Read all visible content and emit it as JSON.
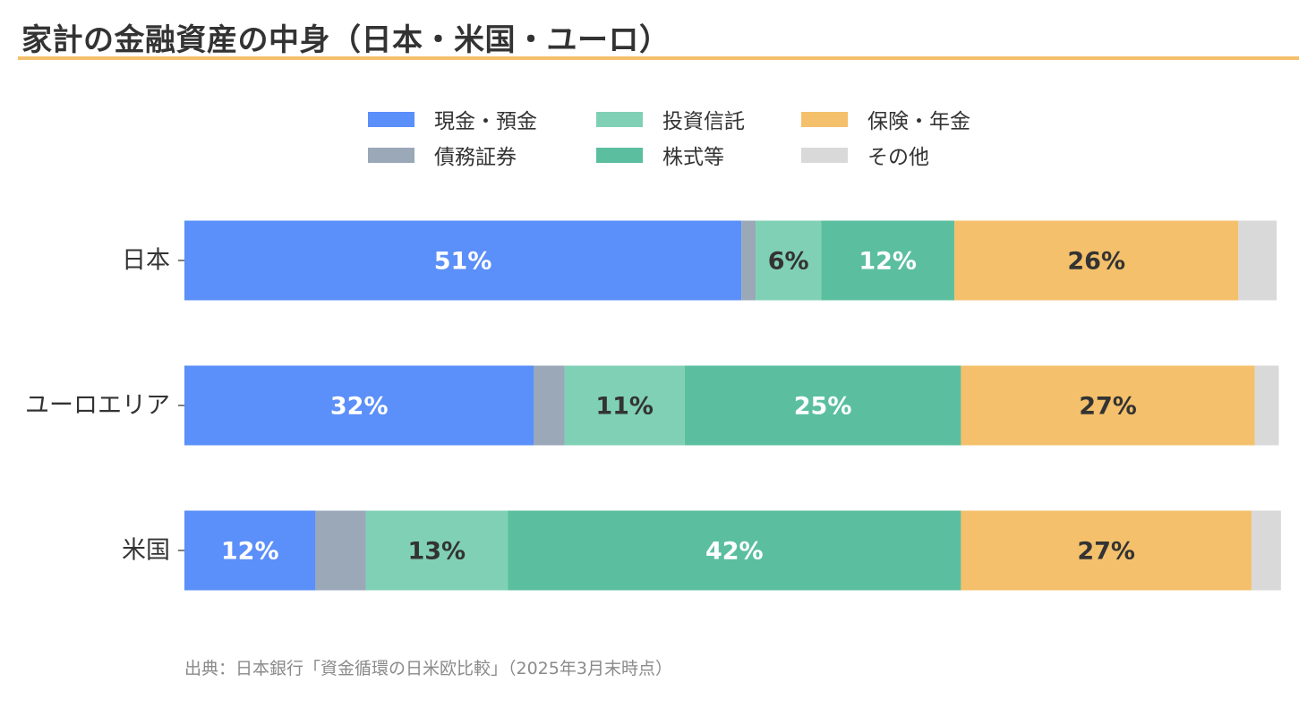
{
  "title": "家計の金融資産の中身（日本・米国・ユーロ）",
  "source": "出典：日本銀行「資金循環の日米欧比較」（2025年3月末時点）",
  "colors": {
    "title_rule": "#f4c06b",
    "text_dark": "#333333",
    "label_light": "#ffffff",
    "source_text": "#8a8a8a"
  },
  "legend": {
    "placement": "top-center",
    "items": [
      {
        "label": "現金・預金",
        "color": "#5b8ff9"
      },
      {
        "label": "債務証券",
        "color": "#9aa8b8"
      },
      {
        "label": "投資信託",
        "color": "#80d0b6"
      },
      {
        "label": "株式等",
        "color": "#5bbf9f"
      },
      {
        "label": "保険・年金",
        "color": "#f4c06b"
      },
      {
        "label": "その他",
        "color": "#d9d9d9"
      }
    ]
  },
  "chart_data": {
    "type": "bar",
    "orientation": "horizontal",
    "stacked": true,
    "xlim": [
      0,
      100
    ],
    "grid": false,
    "categories": [
      "日本",
      "ユーロエリア",
      "米国"
    ],
    "series": [
      {
        "name": "現金・預金",
        "color": "#5b8ff9",
        "values": [
          51,
          32,
          12
        ],
        "labels": [
          "51%",
          "32%",
          "12%"
        ],
        "label_color": "#ffffff"
      },
      {
        "name": "債務証券",
        "color": "#9aa8b8",
        "values": [
          1.3,
          2.8,
          4.6
        ],
        "labels": [
          "",
          "",
          ""
        ],
        "label_color": "#333333"
      },
      {
        "name": "投資信託",
        "color": "#80d0b6",
        "values": [
          6,
          11,
          13
        ],
        "labels": [
          "6%",
          "11%",
          "13%"
        ],
        "label_color": "#333333"
      },
      {
        "name": "株式等",
        "color": "#5bbf9f",
        "values": [
          12.2,
          25.3,
          41.5
        ],
        "labels": [
          "12%",
          "25%",
          "42%"
        ],
        "label_color": "#ffffff"
      },
      {
        "name": "保険・年金",
        "color": "#f4c06b",
        "values": [
          26,
          26.9,
          26.6
        ],
        "labels": [
          "26%",
          "27%",
          "27%"
        ],
        "label_color": "#333333"
      },
      {
        "name": "その他",
        "color": "#d9d9d9",
        "values": [
          3.5,
          2.2,
          2.7
        ],
        "labels": [
          "",
          "",
          ""
        ],
        "label_color": "#333333"
      }
    ]
  }
}
